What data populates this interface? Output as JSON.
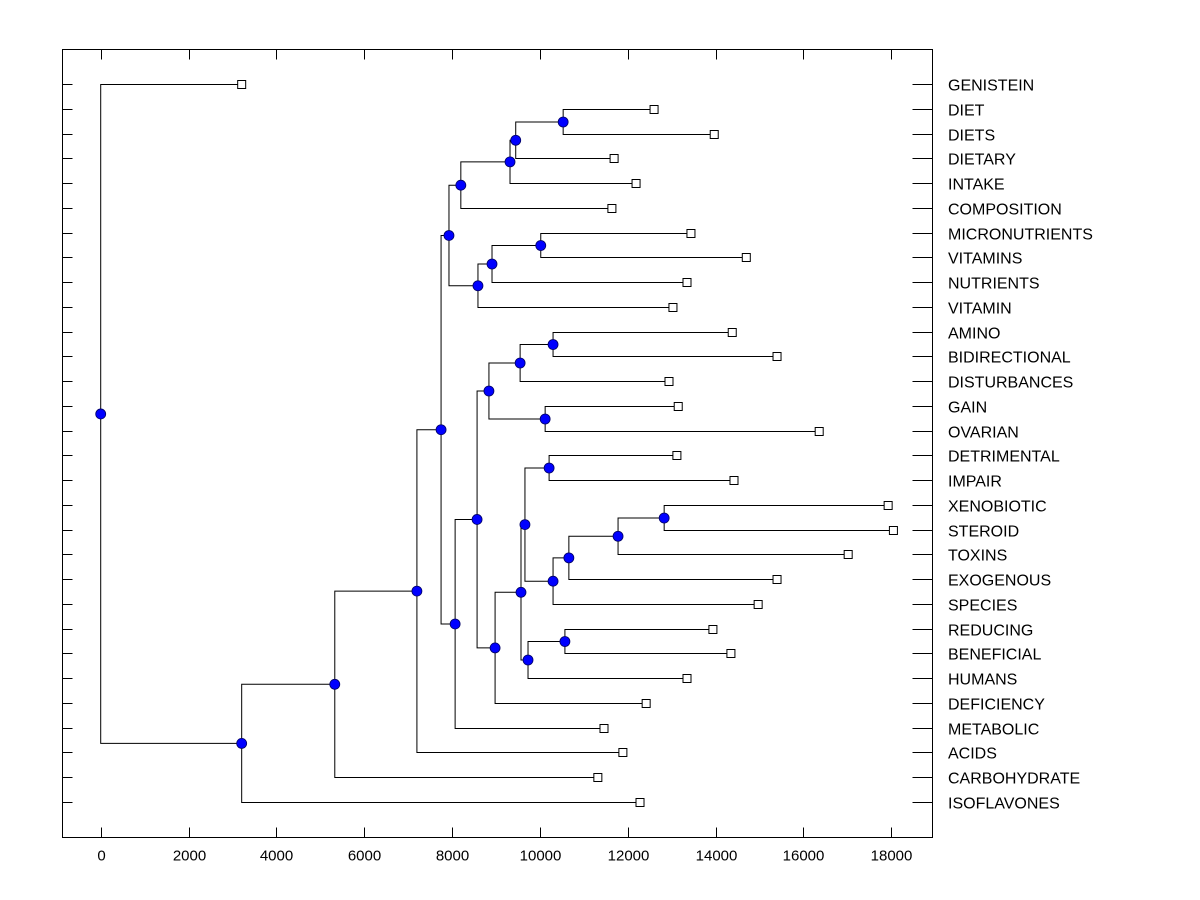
{
  "chart_data": {
    "type": "dendrogram",
    "title": "",
    "xlabel": "",
    "ylabel": "",
    "xlim": [
      -870,
      18940
    ],
    "x_ticks": [
      0,
      2000,
      4000,
      6000,
      8000,
      10000,
      12000,
      14000,
      16000,
      18000
    ],
    "x_tick_labels": [
      "0",
      "2000",
      "4000",
      "6000",
      "8000",
      "10000",
      "12000",
      "14000",
      "16000",
      "18000"
    ],
    "node_color": "#0000ff",
    "leaves": [
      {
        "id": "GENISTEIN",
        "label": "GENISTEIN",
        "x": 3210
      },
      {
        "id": "DIET",
        "label": "DIET",
        "x": 12600
      },
      {
        "id": "DIETS",
        "label": "DIETS",
        "x": 13970
      },
      {
        "id": "DIETARY",
        "label": "DIETARY",
        "x": 11690
      },
      {
        "id": "INTAKE",
        "label": "INTAKE",
        "x": 12190
      },
      {
        "id": "COMPOSITION",
        "label": "COMPOSITION",
        "x": 11640
      },
      {
        "id": "MICRONUTRIENTS",
        "label": "MICRONUTRIENTS",
        "x": 13440
      },
      {
        "id": "VITAMINS",
        "label": "VITAMINS",
        "x": 14700
      },
      {
        "id": "NUTRIENTS",
        "label": "NUTRIENTS",
        "x": 13350
      },
      {
        "id": "VITAMIN",
        "label": "VITAMIN",
        "x": 13030
      },
      {
        "id": "AMINO",
        "label": "AMINO",
        "x": 14380
      },
      {
        "id": "BIDIRECTIONAL",
        "label": "BIDIRECTIONAL",
        "x": 15400
      },
      {
        "id": "DISTURBANCES",
        "label": "DISTURBANCES",
        "x": 12940
      },
      {
        "id": "GAIN",
        "label": "GAIN",
        "x": 13150
      },
      {
        "id": "OVARIAN",
        "label": "OVARIAN",
        "x": 16360
      },
      {
        "id": "DETRIMENTAL",
        "label": "DETRIMENTAL",
        "x": 13120
      },
      {
        "id": "IMPAIR",
        "label": "IMPAIR",
        "x": 14420
      },
      {
        "id": "XENOBIOTIC",
        "label": "XENOBIOTIC",
        "x": 17930
      },
      {
        "id": "STEROID",
        "label": "STEROID",
        "x": 18050
      },
      {
        "id": "TOXINS",
        "label": "TOXINS",
        "x": 17020
      },
      {
        "id": "EXOGENOUS",
        "label": "EXOGENOUS",
        "x": 15400
      },
      {
        "id": "SPECIES",
        "label": "SPECIES",
        "x": 14970
      },
      {
        "id": "REDUCING",
        "label": "REDUCING",
        "x": 13940
      },
      {
        "id": "BENEFICIAL",
        "label": "BENEFICIAL",
        "x": 14350
      },
      {
        "id": "HUMANS",
        "label": "HUMANS",
        "x": 13350
      },
      {
        "id": "DEFICIENCY",
        "label": "DEFICIENCY",
        "x": 12420
      },
      {
        "id": "METABOLIC",
        "label": "METABOLIC",
        "x": 11460
      },
      {
        "id": "ACIDS",
        "label": "ACIDS",
        "x": 11890
      },
      {
        "id": "CARBOHYDRATE",
        "label": "CARBOHYDRATE",
        "x": 11320
      },
      {
        "id": "ISOFLAVONES",
        "label": "ISOFLAVONES",
        "x": 12280
      }
    ],
    "nodes": [
      {
        "id": "n1",
        "x": 10530,
        "children": [
          "DIET",
          "DIETS"
        ]
      },
      {
        "id": "n2",
        "x": 9450,
        "children": [
          "n1",
          "DIETARY"
        ]
      },
      {
        "id": "n3",
        "x": 9320,
        "children": [
          "n2",
          "INTAKE"
        ]
      },
      {
        "id": "n4",
        "x": 8200,
        "children": [
          "n3",
          "COMPOSITION"
        ]
      },
      {
        "id": "n5",
        "x": 10020,
        "children": [
          "MICRONUTRIENTS",
          "VITAMINS"
        ]
      },
      {
        "id": "n6",
        "x": 8910,
        "children": [
          "n5",
          "NUTRIENTS"
        ]
      },
      {
        "id": "n7",
        "x": 8590,
        "children": [
          "n6",
          "VITAMIN"
        ]
      },
      {
        "id": "n8",
        "x": 7930,
        "children": [
          "n4",
          "n7"
        ]
      },
      {
        "id": "n9",
        "x": 10300,
        "children": [
          "AMINO",
          "BIDIRECTIONAL"
        ]
      },
      {
        "id": "n10",
        "x": 9550,
        "children": [
          "n9",
          "DISTURBANCES"
        ]
      },
      {
        "id": "n11",
        "x": 10120,
        "children": [
          "GAIN",
          "OVARIAN"
        ]
      },
      {
        "id": "n12",
        "x": 8840,
        "children": [
          "n10",
          "n11"
        ]
      },
      {
        "id": "n13",
        "x": 10210,
        "children": [
          "DETRIMENTAL",
          "IMPAIR"
        ]
      },
      {
        "id": "n14",
        "x": 12830,
        "children": [
          "XENOBIOTIC",
          "STEROID"
        ]
      },
      {
        "id": "n15",
        "x": 11780,
        "children": [
          "n14",
          "TOXINS"
        ]
      },
      {
        "id": "n16",
        "x": 10660,
        "children": [
          "n15",
          "EXOGENOUS"
        ]
      },
      {
        "id": "n17",
        "x": 10300,
        "children": [
          "n16",
          "SPECIES"
        ]
      },
      {
        "id": "n18",
        "x": 9660,
        "children": [
          "n13",
          "n17"
        ]
      },
      {
        "id": "n19",
        "x": 10570,
        "children": [
          "REDUCING",
          "BENEFICIAL"
        ]
      },
      {
        "id": "n20",
        "x": 9730,
        "children": [
          "n19",
          "HUMANS"
        ]
      },
      {
        "id": "n21",
        "x": 9570,
        "children": [
          "n18",
          "n20"
        ]
      },
      {
        "id": "n22",
        "x": 8980,
        "children": [
          "n21",
          "DEFICIENCY"
        ]
      },
      {
        "id": "n23",
        "x": 8570,
        "children": [
          "n12",
          "n22"
        ]
      },
      {
        "id": "n24",
        "x": 8070,
        "children": [
          "n23",
          "METABOLIC"
        ]
      },
      {
        "id": "n25",
        "x": 7750,
        "children": [
          "n8",
          "n24"
        ]
      },
      {
        "id": "n26",
        "x": 7200,
        "children": [
          "n25",
          "ACIDS"
        ]
      },
      {
        "id": "n27",
        "x": 5330,
        "children": [
          "n26",
          "CARBOHYDRATE"
        ]
      },
      {
        "id": "n28",
        "x": 3210,
        "children": [
          "n27",
          "ISOFLAVONES"
        ]
      },
      {
        "id": "root",
        "x": 0,
        "children": [
          "GENISTEIN",
          "n28"
        ]
      }
    ]
  }
}
